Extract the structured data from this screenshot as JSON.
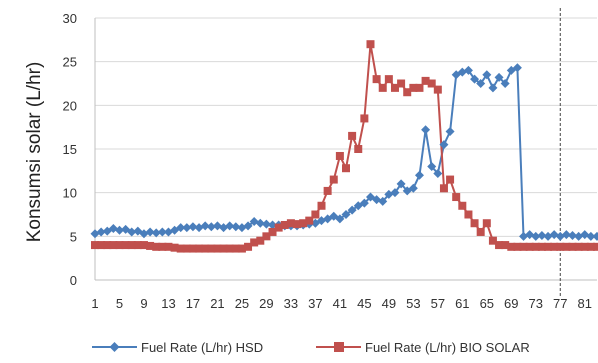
{
  "chart_data": {
    "type": "line",
    "title": "",
    "xlabel": "",
    "ylabel": "Konsumsi solar (L/hr)",
    "ylim": [
      0,
      30
    ],
    "yticks": [
      0,
      5,
      10,
      15,
      20,
      25,
      30
    ],
    "xlim": [
      1,
      83
    ],
    "xticks": [
      1,
      5,
      9,
      13,
      17,
      21,
      25,
      29,
      33,
      37,
      41,
      45,
      49,
      53,
      57,
      61,
      65,
      69,
      73,
      77,
      81
    ],
    "grid": true,
    "legend": "bottom",
    "reference_line_x": 77,
    "x": [
      1,
      2,
      3,
      4,
      5,
      6,
      7,
      8,
      9,
      10,
      11,
      12,
      13,
      14,
      15,
      16,
      17,
      18,
      19,
      20,
      21,
      22,
      23,
      24,
      25,
      26,
      27,
      28,
      29,
      30,
      31,
      32,
      33,
      34,
      35,
      36,
      37,
      38,
      39,
      40,
      41,
      42,
      43,
      44,
      45,
      46,
      47,
      48,
      49,
      50,
      51,
      52,
      53,
      54,
      55,
      56,
      57,
      58,
      59,
      60,
      61,
      62,
      63,
      64,
      65,
      66,
      67,
      68,
      69,
      70,
      71,
      72,
      73,
      74,
      75,
      76,
      77,
      78,
      79,
      80,
      81,
      82,
      83
    ],
    "series": [
      {
        "name": "Fuel Rate (L/hr) HSD",
        "color": "#4a7ebb",
        "marker": "diamond",
        "values": [
          5.3,
          5.5,
          5.6,
          5.9,
          5.7,
          5.8,
          5.5,
          5.6,
          5.3,
          5.5,
          5.4,
          5.5,
          5.5,
          5.7,
          6.0,
          6.0,
          6.1,
          6.0,
          6.2,
          6.1,
          6.2,
          6.0,
          6.2,
          6.1,
          6.0,
          6.2,
          6.7,
          6.5,
          6.4,
          6.3,
          6.3,
          6.2,
          6.2,
          6.2,
          6.3,
          6.4,
          6.5,
          6.8,
          7.0,
          7.3,
          7.0,
          7.5,
          8.0,
          8.5,
          8.8,
          9.5,
          9.2,
          9.0,
          9.8,
          10.0,
          11.0,
          10.2,
          10.5,
          12.0,
          17.2,
          13.0,
          12.2,
          15.5,
          17.0,
          23.5,
          23.8,
          24.0,
          23.0,
          22.5,
          23.5,
          22.0,
          23.2,
          22.5,
          24.0,
          24.3,
          5.0,
          5.2,
          5.0,
          5.1,
          5.0,
          5.2,
          5.0,
          5.2,
          5.1,
          5.0,
          5.2,
          5.0,
          5.0
        ]
      },
      {
        "name": "Fuel Rate (L/hr) BIO SOLAR",
        "color": "#c0504d",
        "marker": "square",
        "values": [
          4.0,
          4.0,
          4.0,
          4.0,
          4.0,
          4.0,
          4.0,
          4.0,
          4.0,
          3.9,
          3.8,
          3.8,
          3.8,
          3.7,
          3.6,
          3.6,
          3.6,
          3.6,
          3.6,
          3.6,
          3.6,
          3.6,
          3.6,
          3.6,
          3.6,
          3.8,
          4.3,
          4.5,
          5.0,
          5.5,
          6.0,
          6.3,
          6.5,
          6.4,
          6.5,
          6.8,
          7.5,
          8.5,
          10.2,
          11.5,
          14.2,
          12.8,
          16.5,
          15.0,
          18.5,
          27.0,
          23.0,
          22.0,
          23.0,
          22.0,
          22.5,
          21.5,
          22.0,
          22.0,
          22.8,
          22.5,
          21.8,
          10.5,
          11.5,
          9.5,
          8.5,
          7.5,
          6.5,
          5.5,
          6.5,
          4.5,
          4.0,
          4.0,
          3.8,
          3.8,
          3.8,
          3.8,
          3.8,
          3.8,
          3.8,
          3.8,
          3.8,
          3.8,
          3.8,
          3.8,
          3.8,
          3.8,
          3.8
        ]
      }
    ]
  }
}
